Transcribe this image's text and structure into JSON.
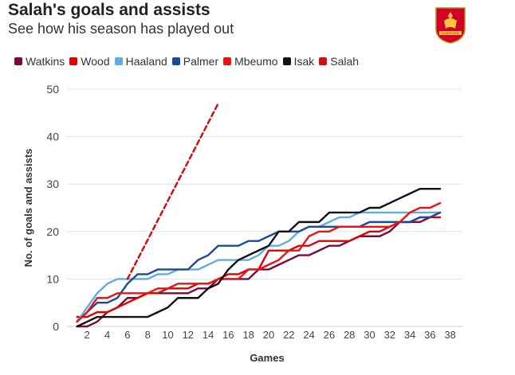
{
  "header": {
    "title": "Salah's goals and assists",
    "subtitle": "See how his season has played out",
    "crest_label": "LIVERPOOL"
  },
  "chart_data": {
    "type": "line",
    "title": "Salah's goals and assists",
    "xlabel": "Games",
    "ylabel": "No. of goals and assists",
    "xlim": [
      0,
      39
    ],
    "ylim": [
      0,
      50
    ],
    "xticks": [
      2,
      4,
      6,
      8,
      10,
      12,
      14,
      16,
      18,
      20,
      22,
      24,
      26,
      28,
      30,
      32,
      34,
      36,
      38
    ],
    "yticks": [
      0,
      10,
      20,
      30,
      40,
      50
    ],
    "grid": true,
    "legend_position": "top-left",
    "series": [
      {
        "name": "Watkins",
        "color": "#7a0a3b",
        "dashed": false,
        "points": [
          [
            1,
            0
          ],
          [
            2,
            0
          ],
          [
            3,
            1
          ],
          [
            4,
            3
          ],
          [
            5,
            4
          ],
          [
            6,
            6
          ],
          [
            7,
            6
          ],
          [
            8,
            7
          ],
          [
            9,
            7
          ],
          [
            10,
            7
          ],
          [
            11,
            7
          ],
          [
            12,
            7
          ],
          [
            13,
            8
          ],
          [
            14,
            8
          ],
          [
            15,
            10
          ],
          [
            16,
            10
          ],
          [
            17,
            10
          ],
          [
            18,
            10
          ],
          [
            19,
            12
          ],
          [
            20,
            12
          ],
          [
            21,
            13
          ],
          [
            22,
            14
          ],
          [
            23,
            15
          ],
          [
            24,
            15
          ],
          [
            25,
            16
          ],
          [
            26,
            17
          ],
          [
            27,
            17
          ],
          [
            28,
            18
          ],
          [
            29,
            19
          ],
          [
            30,
            19
          ],
          [
            31,
            19
          ],
          [
            32,
            20
          ],
          [
            33,
            22
          ],
          [
            34,
            22
          ],
          [
            35,
            22
          ],
          [
            36,
            23
          ],
          [
            37,
            24
          ]
        ]
      },
      {
        "name": "Wood",
        "color": "#e00000",
        "dashed": false,
        "points": [
          [
            1,
            2
          ],
          [
            2,
            2
          ],
          [
            3,
            3
          ],
          [
            4,
            3
          ],
          [
            5,
            4
          ],
          [
            6,
            5
          ],
          [
            7,
            6
          ],
          [
            8,
            7
          ],
          [
            9,
            7
          ],
          [
            10,
            8
          ],
          [
            11,
            8
          ],
          [
            12,
            8
          ],
          [
            13,
            9
          ],
          [
            14,
            9
          ],
          [
            15,
            10
          ],
          [
            16,
            11
          ],
          [
            17,
            11
          ],
          [
            18,
            12
          ],
          [
            19,
            12
          ],
          [
            20,
            16
          ],
          [
            21,
            16
          ],
          [
            22,
            16
          ],
          [
            23,
            17
          ],
          [
            24,
            17
          ],
          [
            25,
            18
          ],
          [
            26,
            18
          ],
          [
            27,
            18
          ],
          [
            28,
            18
          ],
          [
            29,
            19
          ],
          [
            30,
            20
          ],
          [
            31,
            20
          ],
          [
            32,
            21
          ],
          [
            33,
            22
          ],
          [
            34,
            22
          ],
          [
            35,
            23
          ],
          [
            36,
            23
          ],
          [
            37,
            23
          ]
        ]
      },
      {
        "name": "Haaland",
        "color": "#5dade2",
        "dashed": false,
        "points": [
          [
            1,
            1
          ],
          [
            2,
            4
          ],
          [
            3,
            7
          ],
          [
            4,
            9
          ],
          [
            5,
            10
          ],
          [
            6,
            10
          ],
          [
            7,
            10
          ],
          [
            8,
            10
          ],
          [
            9,
            11
          ],
          [
            10,
            11
          ],
          [
            11,
            12
          ],
          [
            12,
            12
          ],
          [
            13,
            12
          ],
          [
            14,
            13
          ],
          [
            15,
            14
          ],
          [
            16,
            14
          ],
          [
            17,
            14
          ],
          [
            18,
            14
          ],
          [
            19,
            15
          ],
          [
            20,
            17
          ],
          [
            21,
            17
          ],
          [
            22,
            18
          ],
          [
            23,
            20
          ],
          [
            24,
            21
          ],
          [
            25,
            21
          ],
          [
            26,
            22
          ],
          [
            27,
            23
          ],
          [
            28,
            23
          ],
          [
            29,
            24
          ],
          [
            30,
            24
          ],
          [
            31,
            24
          ],
          [
            32,
            24
          ],
          [
            33,
            24
          ],
          [
            34,
            24
          ],
          [
            35,
            24
          ],
          [
            36,
            24
          ],
          [
            37,
            24
          ]
        ]
      },
      {
        "name": "Palmer",
        "color": "#1a4a9c",
        "dashed": false,
        "points": [
          [
            1,
            1
          ],
          [
            2,
            3
          ],
          [
            3,
            5
          ],
          [
            4,
            5
          ],
          [
            5,
            6
          ],
          [
            6,
            9
          ],
          [
            7,
            11
          ],
          [
            8,
            11
          ],
          [
            9,
            12
          ],
          [
            10,
            12
          ],
          [
            11,
            12
          ],
          [
            12,
            12
          ],
          [
            13,
            14
          ],
          [
            14,
            15
          ],
          [
            15,
            17
          ],
          [
            16,
            17
          ],
          [
            17,
            17
          ],
          [
            18,
            18
          ],
          [
            19,
            18
          ],
          [
            20,
            19
          ],
          [
            21,
            20
          ],
          [
            22,
            20
          ],
          [
            23,
            20
          ],
          [
            24,
            21
          ],
          [
            25,
            21
          ],
          [
            26,
            21
          ],
          [
            27,
            21
          ],
          [
            28,
            21
          ],
          [
            29,
            21
          ],
          [
            30,
            22
          ],
          [
            31,
            22
          ],
          [
            32,
            22
          ],
          [
            33,
            22
          ],
          [
            34,
            22
          ],
          [
            35,
            23
          ],
          [
            36,
            23
          ],
          [
            37,
            24
          ]
        ]
      },
      {
        "name": "Mbeumo",
        "color": "#ee1111",
        "dashed": false,
        "points": [
          [
            1,
            1
          ],
          [
            2,
            3
          ],
          [
            3,
            6
          ],
          [
            4,
            6
          ],
          [
            5,
            7
          ],
          [
            6,
            7
          ],
          [
            7,
            7
          ],
          [
            8,
            7
          ],
          [
            9,
            8
          ],
          [
            10,
            8
          ],
          [
            11,
            9
          ],
          [
            12,
            9
          ],
          [
            13,
            9
          ],
          [
            14,
            9
          ],
          [
            15,
            10
          ],
          [
            16,
            10
          ],
          [
            17,
            10
          ],
          [
            18,
            12
          ],
          [
            19,
            12
          ],
          [
            20,
            13
          ],
          [
            21,
            14
          ],
          [
            22,
            16
          ],
          [
            23,
            16
          ],
          [
            24,
            19
          ],
          [
            25,
            20
          ],
          [
            26,
            20
          ],
          [
            27,
            21
          ],
          [
            28,
            21
          ],
          [
            29,
            21
          ],
          [
            30,
            21
          ],
          [
            31,
            21
          ],
          [
            32,
            21
          ],
          [
            33,
            22
          ],
          [
            34,
            24
          ],
          [
            35,
            25
          ],
          [
            36,
            25
          ],
          [
            37,
            26
          ]
        ]
      },
      {
        "name": "Isak",
        "color": "#111111",
        "dashed": false,
        "points": [
          [
            1,
            0
          ],
          [
            2,
            1
          ],
          [
            3,
            2
          ],
          [
            4,
            2
          ],
          [
            5,
            2
          ],
          [
            6,
            2
          ],
          [
            7,
            2
          ],
          [
            8,
            2
          ],
          [
            9,
            3
          ],
          [
            10,
            4
          ],
          [
            11,
            6
          ],
          [
            12,
            6
          ],
          [
            13,
            6
          ],
          [
            14,
            8
          ],
          [
            15,
            9
          ],
          [
            16,
            12
          ],
          [
            17,
            14
          ],
          [
            18,
            15
          ],
          [
            19,
            16
          ],
          [
            20,
            17
          ],
          [
            21,
            20
          ],
          [
            22,
            20
          ],
          [
            23,
            22
          ],
          [
            24,
            22
          ],
          [
            25,
            22
          ],
          [
            26,
            24
          ],
          [
            27,
            24
          ],
          [
            28,
            24
          ],
          [
            29,
            24
          ],
          [
            30,
            25
          ],
          [
            31,
            25
          ],
          [
            32,
            26
          ],
          [
            33,
            27
          ],
          [
            34,
            28
          ],
          [
            35,
            29
          ],
          [
            36,
            29
          ],
          [
            37,
            29
          ]
        ]
      },
      {
        "name": "Salah",
        "color": "#d01010",
        "dashed": true,
        "points": [
          [
            6,
            10
          ],
          [
            15,
            47
          ]
        ]
      }
    ]
  }
}
